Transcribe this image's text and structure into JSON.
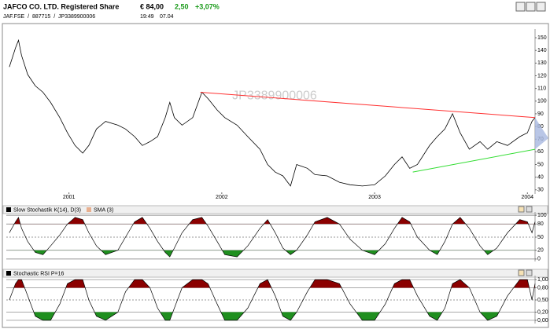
{
  "header": {
    "title": "JAFCO CO. LTD. Registered Share",
    "price": "€ 84,00",
    "change": "2,50",
    "change_pct": "+3,07%",
    "ids": "JAF.FSE  /  887715  /  JP3389900006",
    "time": "19:49",
    "date": "07.04"
  },
  "chart_data": [
    {
      "type": "line",
      "watermark": "JP3389900006",
      "x": [
        2000.61,
        2000.65,
        2000.67,
        2000.69,
        2000.73,
        2000.78,
        2000.83,
        2000.88,
        2000.94,
        2000.99,
        2001.04,
        2001.09,
        2001.13,
        2001.18,
        2001.24,
        2001.32,
        2001.37,
        2001.43,
        2001.48,
        2001.53,
        2001.58,
        2001.63,
        2001.66,
        2001.69,
        2001.74,
        2001.81,
        2001.87,
        2001.91,
        2001.97,
        2002.02,
        2002.1,
        2002.17,
        2002.25,
        2002.3,
        2002.35,
        2002.4,
        2002.45,
        2002.49,
        2002.56,
        2002.61,
        2002.69,
        2002.77,
        2002.84,
        2002.92,
        2003.0,
        2003.07,
        2003.13,
        2003.18,
        2003.23,
        2003.28,
        2003.36,
        2003.41,
        2003.46,
        2003.51,
        2003.56,
        2003.62,
        2003.69,
        2003.74,
        2003.8,
        2003.87,
        2003.95,
        2004.0,
        2004.03,
        2004.05
      ],
      "series": [
        {
          "color": "#000000",
          "values": [
            127,
            142,
            148,
            136,
            121,
            112,
            107,
            99,
            87,
            75,
            65,
            59,
            65,
            78,
            84,
            81,
            78,
            72,
            65,
            68,
            72,
            87,
            99,
            87,
            81,
            87,
            107,
            102,
            93,
            87,
            81,
            72,
            62,
            50,
            44,
            41,
            33,
            50,
            47,
            42,
            41,
            36,
            34,
            33,
            34,
            41,
            50,
            56,
            47,
            50,
            65,
            72,
            78,
            90,
            75,
            62,
            68,
            62,
            68,
            65,
            72,
            75,
            84,
            87
          ]
        }
      ],
      "trendlines": [
        {
          "color": "#ff3030",
          "x": [
            2001.86,
            2004.05
          ],
          "y": [
            107,
            87
          ]
        },
        {
          "color": "#33dd33",
          "x": [
            2003.25,
            2004.05
          ],
          "y": [
            44,
            62
          ]
        }
      ],
      "xlim": [
        2000.59,
        2004.05
      ],
      "ylim": [
        28,
        155
      ],
      "xticks": [
        2001,
        2002,
        2003,
        2004
      ],
      "yticks": [
        30,
        40,
        50,
        60,
        70,
        80,
        90,
        100,
        110,
        120,
        130,
        140,
        150
      ],
      "grid": false
    },
    {
      "type": "oscillator",
      "title": "Slow Stochastik K(14), D(3)",
      "legend_extra": {
        "name": "SMA (3)",
        "color": "#e8b090"
      },
      "overbought_color": "#8b0000",
      "oversold_color": "#1f8f1f",
      "upper": 80,
      "lower": 20,
      "x": [
        2000.61,
        2000.65,
        2000.67,
        2000.69,
        2000.73,
        2000.78,
        2000.83,
        2000.88,
        2000.94,
        2000.99,
        2001.04,
        2001.09,
        2001.13,
        2001.18,
        2001.24,
        2001.32,
        2001.37,
        2001.43,
        2001.48,
        2001.53,
        2001.58,
        2001.63,
        2001.66,
        2001.69,
        2001.74,
        2001.81,
        2001.87,
        2001.91,
        2001.97,
        2002.02,
        2002.1,
        2002.17,
        2002.25,
        2002.3,
        2002.35,
        2002.4,
        2002.45,
        2002.49,
        2002.56,
        2002.61,
        2002.69,
        2002.77,
        2002.84,
        2002.92,
        2003.0,
        2003.07,
        2003.13,
        2003.18,
        2003.23,
        2003.28,
        2003.36,
        2003.41,
        2003.46,
        2003.51,
        2003.56,
        2003.62,
        2003.69,
        2003.74,
        2003.8,
        2003.87,
        2003.95,
        2004.0,
        2004.03,
        2004.05
      ],
      "series": [
        {
          "color": "#000000",
          "values": [
            60,
            85,
            95,
            70,
            40,
            15,
            10,
            30,
            55,
            80,
            95,
            90,
            60,
            30,
            10,
            20,
            50,
            85,
            95,
            70,
            40,
            15,
            5,
            25,
            60,
            90,
            95,
            75,
            40,
            10,
            5,
            30,
            70,
            90,
            60,
            25,
            10,
            20,
            55,
            85,
            95,
            80,
            45,
            20,
            10,
            35,
            70,
            95,
            85,
            50,
            20,
            10,
            40,
            80,
            95,
            70,
            30,
            10,
            25,
            60,
            90,
            85,
            60,
            85
          ]
        }
      ],
      "xlim": [
        2000.59,
        2004.05
      ],
      "ylim": [
        -2,
        102
      ],
      "yticks": [
        0,
        20,
        50,
        80,
        100
      ],
      "grid": true
    },
    {
      "type": "oscillator",
      "title": "Stochastic RSI P=16",
      "overbought_color": "#8b0000",
      "oversold_color": "#1f8f1f",
      "upper": 0.8,
      "lower": 0.2,
      "x": [
        2000.61,
        2000.65,
        2000.67,
        2000.69,
        2000.73,
        2000.78,
        2000.83,
        2000.88,
        2000.94,
        2000.99,
        2001.04,
        2001.09,
        2001.13,
        2001.18,
        2001.24,
        2001.32,
        2001.37,
        2001.43,
        2001.48,
        2001.53,
        2001.58,
        2001.63,
        2001.66,
        2001.69,
        2001.74,
        2001.81,
        2001.87,
        2001.91,
        2001.97,
        2002.02,
        2002.1,
        2002.17,
        2002.25,
        2002.3,
        2002.35,
        2002.4,
        2002.45,
        2002.49,
        2002.56,
        2002.61,
        2002.69,
        2002.77,
        2002.84,
        2002.92,
        2003.0,
        2003.07,
        2003.13,
        2003.18,
        2003.23,
        2003.28,
        2003.36,
        2003.41,
        2003.46,
        2003.51,
        2003.56,
        2003.62,
        2003.69,
        2003.74,
        2003.8,
        2003.87,
        2003.95,
        2004.0,
        2004.03,
        2004.05
      ],
      "series": [
        {
          "color": "#000000",
          "values": [
            0.5,
            0.9,
            1,
            1,
            0.6,
            0.1,
            0,
            0,
            0.4,
            0.9,
            1,
            1,
            0.5,
            0.1,
            0,
            0.2,
            0.7,
            1,
            1,
            0.8,
            0.3,
            0,
            0,
            0.3,
            0.8,
            1,
            1,
            0.9,
            0.4,
            0,
            0,
            0.3,
            0.9,
            1,
            0.6,
            0.1,
            0,
            0.2,
            0.7,
            1,
            1,
            0.9,
            0.4,
            0,
            0,
            0.4,
            0.9,
            1,
            1,
            0.6,
            0.1,
            0,
            0.3,
            0.9,
            1,
            0.8,
            0.2,
            0,
            0.1,
            0.6,
            1,
            1,
            0.5,
            0.9
          ]
        }
      ],
      "xlim": [
        2000.59,
        2004.05
      ],
      "ylim": [
        -0.04,
        1.04
      ],
      "yticks": [
        {
          "value": 0,
          "label": "0,00"
        },
        {
          "value": 0.2,
          "label": "0,20"
        },
        {
          "value": 0.5,
          "label": "0,50"
        },
        {
          "value": 0.8,
          "label": "0,80"
        },
        {
          "value": 1,
          "label": "1,00"
        }
      ],
      "grid": true
    }
  ]
}
